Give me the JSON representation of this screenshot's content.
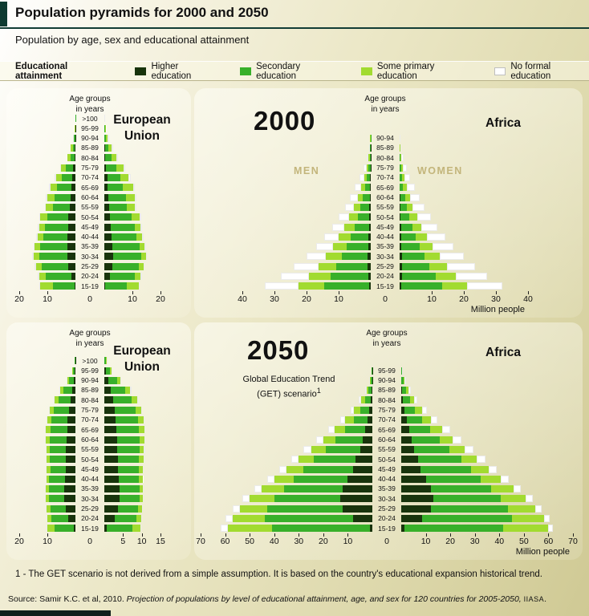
{
  "header": {
    "title": "Population pyramids for 2000 and 2050",
    "subtitle": "Population by age, sex and educational attainment"
  },
  "legend": {
    "title": "Educational attainment",
    "items": [
      {
        "id": "higher",
        "label": "Higher education",
        "color": "#18340c"
      },
      {
        "id": "secondary",
        "label": "Secondary education",
        "color": "#38b02a"
      },
      {
        "id": "primary",
        "label": "Some primary education",
        "color": "#a2db30"
      },
      {
        "id": "none",
        "label": "No formal education",
        "color": "#ffffff"
      }
    ]
  },
  "panels": {
    "eu2000": {
      "region": "European Union",
      "age_axis_label": "Age groups\nin years"
    },
    "africa2000": {
      "year": "2000",
      "region": "Africa",
      "men_label": "MEN",
      "women_label": "WOMEN",
      "age_axis_label": "Age groups\nin years"
    },
    "eu2050": {
      "region": "European Union",
      "age_axis_label": "Age groups\nin years"
    },
    "africa2050": {
      "year": "2050",
      "region": "Africa",
      "get_note_line1": "Global Education Trend",
      "get_note_line2": "(GET) scenario",
      "footnote_ref": "1",
      "age_axis_label": "Age groups\nin years"
    }
  },
  "footnote": {
    "text": "1 - The GET scenario is not derived from a simple assumption. It is based on the country's educational expansion historical trend."
  },
  "source": {
    "prefix": "Source: Samir K.C. et al, 2010. ",
    "title_italic": "Projection of populations by level of educational attainment, age, and sex for 120 countries for 2005-2050, ",
    "org": "IIASA",
    "end": "."
  },
  "chart_data": [
    {
      "id": "eu-2000",
      "type": "population_pyramid",
      "title": "European Union",
      "year": "2000",
      "unit": "million people",
      "education_levels": [
        "Higher education",
        "Secondary education",
        "Some primary education",
        "No formal education"
      ],
      "axis": {
        "left_max": 20,
        "right_max": 20,
        "ticks_left": [
          20,
          10
        ],
        "center": "0",
        "ticks_right": [
          10,
          20
        ],
        "unit": ""
      },
      "age_groups": [
        ">100",
        "95-99",
        "90-94",
        "85-89",
        "80-84",
        "75-79",
        "70-74",
        "65-69",
        "60-64",
        "55-59",
        "50-54",
        "45-49",
        "40-44",
        "35-39",
        "30-34",
        "25-29",
        "20-24",
        "15-19"
      ],
      "men": [
        [
          0.01,
          0.04,
          0.03,
          0.02
        ],
        [
          0.03,
          0.12,
          0.1,
          0.05
        ],
        [
          0.1,
          0.35,
          0.25,
          0.1
        ],
        [
          0.2,
          0.8,
          0.6,
          0.2
        ],
        [
          0.4,
          1.4,
          1.0,
          0.2
        ],
        [
          0.8,
          2.7,
          1.6,
          0.4
        ],
        [
          1.2,
          3.8,
          2.0,
          0.5
        ],
        [
          1.5,
          5.0,
          2.5,
          0.5
        ],
        [
          1.8,
          5.7,
          2.5,
          0.5
        ],
        [
          2.0,
          6.0,
          2.5,
          0.5
        ],
        [
          2.5,
          7.5,
          2.5,
          0.5
        ],
        [
          2.7,
          8.3,
          2.0,
          0.5
        ],
        [
          2.8,
          8.7,
          2.0,
          0.5
        ],
        [
          3.0,
          9.5,
          2.0,
          0.5
        ],
        [
          3.0,
          10.0,
          2.0,
          0.5
        ],
        [
          2.5,
          9.5,
          2.0,
          0.5
        ],
        [
          1.5,
          9.0,
          2.5,
          0.5
        ],
        [
          0.2,
          7.8,
          4.5,
          0.5
        ]
      ],
      "women": [
        [
          0.01,
          0.05,
          0.05,
          0.04
        ],
        [
          0.04,
          0.2,
          0.2,
          0.16
        ],
        [
          0.1,
          0.6,
          0.5,
          0.4
        ],
        [
          0.2,
          1.3,
          1.1,
          0.6
        ],
        [
          0.4,
          2.2,
          1.8,
          0.6
        ],
        [
          0.7,
          3.5,
          2.6,
          0.7
        ],
        [
          1.0,
          4.6,
          3.1,
          0.8
        ],
        [
          1.2,
          5.5,
          3.5,
          0.8
        ],
        [
          1.4,
          6.2,
          3.2,
          0.7
        ],
        [
          1.6,
          6.5,
          2.8,
          0.6
        ],
        [
          2.0,
          7.8,
          2.8,
          0.6
        ],
        [
          2.4,
          8.5,
          2.1,
          0.5
        ],
        [
          2.6,
          8.9,
          2.0,
          0.5
        ],
        [
          2.9,
          9.6,
          1.9,
          0.4
        ],
        [
          3.0,
          10.0,
          1.8,
          0.4
        ],
        [
          2.8,
          9.4,
          1.7,
          0.4
        ],
        [
          2.0,
          8.8,
          2.1,
          0.4
        ],
        [
          0.3,
          7.6,
          4.3,
          0.4
        ]
      ]
    },
    {
      "id": "africa-2000",
      "type": "population_pyramid",
      "title": "Africa",
      "year": "2000",
      "unit": "million people",
      "education_levels": [
        "Higher education",
        "Secondary education",
        "Some primary education",
        "No formal education"
      ],
      "axis": {
        "left_max": 40,
        "right_max": 40,
        "ticks_left": [
          40,
          30,
          20,
          10
        ],
        "center": "0",
        "ticks_right": [
          10,
          20,
          30,
          40
        ],
        "unit": "Million people"
      },
      "age_groups": [
        "90-94",
        "85-89",
        "80-84",
        "75-79",
        "70-74",
        "65-69",
        "60-64",
        "55-59",
        "50-54",
        "45-49",
        "40-44",
        "35-39",
        "30-34",
        "25-29",
        "20-24",
        "15-19"
      ],
      "men": [
        [
          0.01,
          0.06,
          0.08,
          0.1
        ],
        [
          0.02,
          0.15,
          0.18,
          0.25
        ],
        [
          0.05,
          0.3,
          0.35,
          0.5
        ],
        [
          0.1,
          0.6,
          0.6,
          0.9
        ],
        [
          0.15,
          1.0,
          0.95,
          1.4
        ],
        [
          0.2,
          1.5,
          1.3,
          2.0
        ],
        [
          0.3,
          2.1,
          1.7,
          2.4
        ],
        [
          0.4,
          2.8,
          2.1,
          2.7
        ],
        [
          0.5,
          3.6,
          2.6,
          3.3
        ],
        [
          0.6,
          4.5,
          3.1,
          3.8
        ],
        [
          0.7,
          5.6,
          3.6,
          4.6
        ],
        [
          0.8,
          6.8,
          4.2,
          5.2
        ],
        [
          0.9,
          8.2,
          4.9,
          6.0
        ],
        [
          0.9,
          9.8,
          5.6,
          7.7
        ],
        [
          0.8,
          11.8,
          6.6,
          8.8
        ],
        [
          0.5,
          14.0,
          8.0,
          10.5
        ]
      ],
      "women": [
        [
          0.01,
          0.04,
          0.07,
          0.15
        ],
        [
          0.01,
          0.1,
          0.15,
          0.35
        ],
        [
          0.02,
          0.2,
          0.3,
          0.7
        ],
        [
          0.05,
          0.4,
          0.5,
          1.2
        ],
        [
          0.08,
          0.7,
          0.8,
          1.8
        ],
        [
          0.1,
          1.0,
          1.1,
          2.5
        ],
        [
          0.15,
          1.5,
          1.5,
          3.1
        ],
        [
          0.2,
          2.0,
          1.9,
          3.6
        ],
        [
          0.3,
          2.7,
          2.4,
          4.3
        ],
        [
          0.4,
          3.5,
          2.9,
          5.0
        ],
        [
          0.5,
          4.5,
          3.4,
          5.8
        ],
        [
          0.6,
          5.7,
          4.0,
          6.5
        ],
        [
          0.7,
          7.0,
          4.7,
          7.5
        ],
        [
          0.7,
          8.6,
          5.4,
          8.8
        ],
        [
          0.7,
          10.5,
          6.3,
          9.7
        ],
        [
          0.4,
          12.8,
          7.8,
          11.0
        ]
      ]
    },
    {
      "id": "eu-2050",
      "type": "population_pyramid",
      "title": "European Union",
      "year": "2050",
      "unit": "million people",
      "education_levels": [
        "Higher education",
        "Secondary education",
        "Some primary education",
        "No formal education"
      ],
      "axis": {
        "left_max": 20,
        "right_max": 15,
        "ticks_left": [
          20,
          10
        ],
        "center": "0",
        "ticks_right": [
          5,
          10,
          15
        ],
        "unit": ""
      },
      "age_groups": [
        ">100",
        "95-99",
        "90-94",
        "85-89",
        "80-84",
        "75-79",
        "70-74",
        "65-69",
        "60-64",
        "55-59",
        "50-54",
        "45-49",
        "40-44",
        "35-39",
        "30-34",
        "25-29",
        "20-24",
        "15-19"
      ],
      "men": [
        [
          0.05,
          0.2,
          0.1,
          0.05
        ],
        [
          0.2,
          0.6,
          0.3,
          0.1
        ],
        [
          0.6,
          1.6,
          0.7,
          0.2
        ],
        [
          1.2,
          3.0,
          1.1,
          0.3
        ],
        [
          1.8,
          4.2,
          1.4,
          0.3
        ],
        [
          2.4,
          5.2,
          1.5,
          0.3
        ],
        [
          2.8,
          5.8,
          1.5,
          0.3
        ],
        [
          3.0,
          6.0,
          1.5,
          0.3
        ],
        [
          3.2,
          6.0,
          1.4,
          0.3
        ],
        [
          3.3,
          5.8,
          1.3,
          0.3
        ],
        [
          3.5,
          5.7,
          1.2,
          0.3
        ],
        [
          3.5,
          5.5,
          1.2,
          0.3
        ],
        [
          3.8,
          5.5,
          1.0,
          0.3
        ],
        [
          4.0,
          5.5,
          1.0,
          0.3
        ],
        [
          4.0,
          5.5,
          1.0,
          0.3
        ],
        [
          3.5,
          5.5,
          1.2,
          0.3
        ],
        [
          2.5,
          6.0,
          1.5,
          0.3
        ],
        [
          0.5,
          7.0,
          2.5,
          0.3
        ]
      ],
      "women": [
        [
          0.1,
          0.4,
          0.2,
          0.1
        ],
        [
          0.4,
          1.1,
          0.5,
          0.15
        ],
        [
          1.0,
          2.4,
          0.9,
          0.25
        ],
        [
          1.7,
          3.9,
          1.3,
          0.3
        ],
        [
          2.3,
          4.9,
          1.5,
          0.3
        ],
        [
          2.7,
          5.6,
          1.5,
          0.3
        ],
        [
          3.0,
          6.0,
          1.5,
          0.3
        ],
        [
          3.2,
          6.1,
          1.4,
          0.3
        ],
        [
          3.4,
          6.0,
          1.3,
          0.3
        ],
        [
          3.5,
          5.9,
          1.2,
          0.3
        ],
        [
          3.6,
          5.7,
          1.1,
          0.3
        ],
        [
          3.7,
          5.5,
          1.0,
          0.3
        ],
        [
          3.9,
          5.4,
          0.9,
          0.2
        ],
        [
          4.1,
          5.3,
          0.9,
          0.2
        ],
        [
          4.1,
          5.3,
          0.9,
          0.2
        ],
        [
          3.7,
          5.4,
          1.0,
          0.2
        ],
        [
          2.7,
          5.9,
          1.3,
          0.2
        ],
        [
          0.6,
          6.8,
          2.3,
          0.2
        ]
      ]
    },
    {
      "id": "africa-2050",
      "type": "population_pyramid",
      "title": "Africa",
      "year": "2050",
      "scenario": "Global Education Trend (GET) scenario",
      "unit": "million people",
      "education_levels": [
        "Higher education",
        "Secondary education",
        "Some primary education",
        "No formal education"
      ],
      "axis": {
        "left_max": 70,
        "right_max": 70,
        "ticks_left": [
          70,
          60,
          50,
          40,
          30,
          20,
          10
        ],
        "center": "0",
        "ticks_right": [
          10,
          20,
          30,
          40,
          50,
          60,
          70
        ],
        "unit": "Million people"
      },
      "age_groups": [
        "95-99",
        "90-94",
        "85-89",
        "80-84",
        "75-79",
        "70-74",
        "65-69",
        "60-64",
        "55-59",
        "50-54",
        "45-49",
        "40-44",
        "35-39",
        "30-34",
        "25-29",
        "20-24",
        "15-19"
      ],
      "men": [
        [
          0.03,
          0.15,
          0.12,
          0.1
        ],
        [
          0.1,
          0.5,
          0.4,
          0.3
        ],
        [
          0.3,
          1.2,
          0.9,
          0.6
        ],
        [
          0.7,
          2.3,
          1.5,
          1.0
        ],
        [
          1.2,
          3.8,
          2.5,
          1.5
        ],
        [
          2.0,
          5.5,
          3.5,
          2.0
        ],
        [
          3.0,
          8.0,
          4.5,
          2.5
        ],
        [
          4.0,
          11.0,
          5.0,
          3.0
        ],
        [
          5.0,
          14.0,
          6.0,
          3.0
        ],
        [
          7.0,
          17.0,
          6.0,
          3.0
        ],
        [
          8.0,
          20.0,
          7.0,
          3.0
        ],
        [
          10.0,
          22.0,
          8.0,
          3.0
        ],
        [
          12.0,
          24.0,
          9.0,
          3.0
        ],
        [
          13.0,
          27.0,
          10.0,
          3.0
        ],
        [
          12.0,
          31.0,
          11.0,
          3.0
        ],
        [
          8.0,
          36.0,
          13.0,
          3.0
        ],
        [
          1.0,
          40.0,
          18.0,
          3.0
        ]
      ],
      "women": [
        [
          0.04,
          0.2,
          0.18,
          0.18
        ],
        [
          0.15,
          0.7,
          0.55,
          0.5
        ],
        [
          0.4,
          1.5,
          1.1,
          0.9
        ],
        [
          0.8,
          2.7,
          1.8,
          1.4
        ],
        [
          1.4,
          4.3,
          2.8,
          2.0
        ],
        [
          2.2,
          6.2,
          3.8,
          2.6
        ],
        [
          3.2,
          8.6,
          4.8,
          3.2
        ],
        [
          4.2,
          11.5,
          5.3,
          3.5
        ],
        [
          5.2,
          14.5,
          6.2,
          3.5
        ],
        [
          7.0,
          17.5,
          6.3,
          3.5
        ],
        [
          8.0,
          20.5,
          7.2,
          3.3
        ],
        [
          10.0,
          22.5,
          8.2,
          3.2
        ],
        [
          12.0,
          24.5,
          9.2,
          3.0
        ],
        [
          13.0,
          27.5,
          10.2,
          2.8
        ],
        [
          12.0,
          31.5,
          11.2,
          2.6
        ],
        [
          8.5,
          36.5,
          13.2,
          2.3
        ],
        [
          1.2,
          40.5,
          18.2,
          2.0
        ]
      ]
    }
  ]
}
